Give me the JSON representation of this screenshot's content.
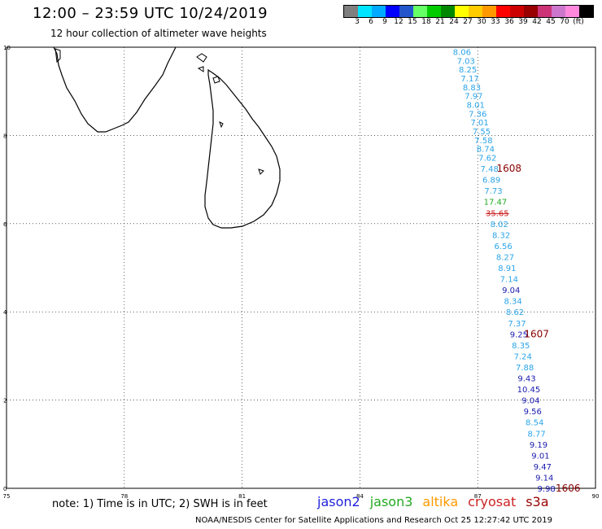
{
  "title": "12:00 – 23:59 UTC 10/24/2019",
  "subtitle": "12 hour collection of altimeter wave heights",
  "scale": {
    "colors": [
      "#7f7f7f",
      "#00e5ff",
      "#00aaff",
      "#0000ff",
      "#2255cc",
      "#66ff66",
      "#00cc00",
      "#008800",
      "#ffff00",
      "#ffcc00",
      "#ff9900",
      "#ff0000",
      "#cc0000",
      "#990000",
      "#cc3377",
      "#cc77cc",
      "#ff88dd",
      "#000000"
    ],
    "labels": [
      "3",
      "6",
      "9",
      "12",
      "15",
      "18",
      "21",
      "24",
      "27",
      "30",
      "33",
      "36",
      "39",
      "42",
      "45",
      "70",
      "(ft)"
    ]
  },
  "axes": {
    "lon_ticks": [
      "75",
      "78",
      "81",
      "84",
      "87",
      "90"
    ],
    "lat_ticks": [
      "0",
      "2",
      "4",
      "6",
      "8",
      "10"
    ]
  },
  "chart_data": {
    "type": "scatter",
    "xlim": [
      75,
      90
    ],
    "ylim": [
      0,
      10
    ],
    "grid": true,
    "points": [
      {
        "lon": 86.6,
        "lat": 9.9,
        "v": "8.06",
        "c": "#2aa4e8"
      },
      {
        "lon": 86.7,
        "lat": 9.7,
        "v": "7.03",
        "c": "#2aa4e8"
      },
      {
        "lon": 86.75,
        "lat": 9.5,
        "v": "8.25",
        "c": "#2aa4e8"
      },
      {
        "lon": 86.8,
        "lat": 9.3,
        "v": "7.17",
        "c": "#2aa4e8"
      },
      {
        "lon": 86.85,
        "lat": 9.1,
        "v": "8.83",
        "c": "#2aa4e8"
      },
      {
        "lon": 86.9,
        "lat": 8.9,
        "v": "7.97",
        "c": "#2aa4e8"
      },
      {
        "lon": 86.95,
        "lat": 8.7,
        "v": "8.01",
        "c": "#2aa4e8"
      },
      {
        "lon": 87.0,
        "lat": 8.5,
        "v": "7.36",
        "c": "#2aa4e8"
      },
      {
        "lon": 87.05,
        "lat": 8.3,
        "v": "7.01",
        "c": "#2aa4e8"
      },
      {
        "lon": 87.1,
        "lat": 8.1,
        "v": "7.55",
        "c": "#2aa4e8"
      },
      {
        "lon": 87.15,
        "lat": 7.9,
        "v": "7.58",
        "c": "#2aa4e8"
      },
      {
        "lon": 87.2,
        "lat": 7.7,
        "v": "8.74",
        "c": "#2aa4e8"
      },
      {
        "lon": 87.25,
        "lat": 7.5,
        "v": "7.62",
        "c": "#2aa4e8"
      },
      {
        "lon": 87.3,
        "lat": 7.25,
        "v": "7.48",
        "c": "#2aa4e8"
      },
      {
        "lon": 87.35,
        "lat": 7.0,
        "v": "6.89",
        "c": "#2aa4e8"
      },
      {
        "lon": 87.4,
        "lat": 6.75,
        "v": "7.73",
        "c": "#2aa4e8"
      },
      {
        "lon": 87.45,
        "lat": 6.5,
        "v": "17.47",
        "c": "#22aa22"
      },
      {
        "lon": 87.5,
        "lat": 6.25,
        "v": "35.65",
        "c": "#cc2222",
        "strike": true
      },
      {
        "lon": 87.55,
        "lat": 6.0,
        "v": "8.02",
        "c": "#2aa4e8"
      },
      {
        "lon": 87.6,
        "lat": 5.75,
        "v": "8.32",
        "c": "#2aa4e8"
      },
      {
        "lon": 87.65,
        "lat": 5.5,
        "v": "6.56",
        "c": "#2aa4e8"
      },
      {
        "lon": 87.7,
        "lat": 5.25,
        "v": "8.27",
        "c": "#2aa4e8"
      },
      {
        "lon": 87.75,
        "lat": 5.0,
        "v": "8.91",
        "c": "#2aa4e8"
      },
      {
        "lon": 87.8,
        "lat": 4.75,
        "v": "7.14",
        "c": "#2aa4e8"
      },
      {
        "lon": 87.85,
        "lat": 4.5,
        "v": "9.04",
        "c": "#1a1ab0"
      },
      {
        "lon": 87.9,
        "lat": 4.25,
        "v": "8.34",
        "c": "#2aa4e8"
      },
      {
        "lon": 87.95,
        "lat": 4.0,
        "v": "8.62",
        "c": "#2aa4e8"
      },
      {
        "lon": 88.0,
        "lat": 3.75,
        "v": "7.37",
        "c": "#2aa4e8"
      },
      {
        "lon": 88.05,
        "lat": 3.5,
        "v": "9.25",
        "c": "#1a1ab0"
      },
      {
        "lon": 88.1,
        "lat": 3.25,
        "v": "8.35",
        "c": "#2aa4e8"
      },
      {
        "lon": 88.15,
        "lat": 3.0,
        "v": "7.24",
        "c": "#2aa4e8"
      },
      {
        "lon": 88.2,
        "lat": 2.75,
        "v": "7.88",
        "c": "#2aa4e8"
      },
      {
        "lon": 88.25,
        "lat": 2.5,
        "v": "9.43",
        "c": "#1a1ab0"
      },
      {
        "lon": 88.3,
        "lat": 2.25,
        "v": "10.45",
        "c": "#1a1ab0"
      },
      {
        "lon": 88.35,
        "lat": 2.0,
        "v": "9.04",
        "c": "#1a1ab0"
      },
      {
        "lon": 88.4,
        "lat": 1.75,
        "v": "9.56",
        "c": "#1a1ab0"
      },
      {
        "lon": 88.45,
        "lat": 1.5,
        "v": "8.54",
        "c": "#2aa4e8"
      },
      {
        "lon": 88.5,
        "lat": 1.25,
        "v": "8.77",
        "c": "#2aa4e8"
      },
      {
        "lon": 88.55,
        "lat": 1.0,
        "v": "9.19",
        "c": "#1a1ab0"
      },
      {
        "lon": 88.6,
        "lat": 0.75,
        "v": "9.01",
        "c": "#1a1ab0"
      },
      {
        "lon": 88.65,
        "lat": 0.5,
        "v": "9.47",
        "c": "#1a1ab0"
      },
      {
        "lon": 88.7,
        "lat": 0.25,
        "v": "9.14",
        "c": "#1a1ab0"
      },
      {
        "lon": 88.75,
        "lat": 0.0,
        "v": "9.98",
        "c": "#1a1ab0"
      }
    ],
    "time_labels": [
      {
        "lon": 87.8,
        "lat": 7.25,
        "t": "1608"
      },
      {
        "lon": 88.5,
        "lat": 3.5,
        "t": "1607"
      },
      {
        "lon": 89.3,
        "lat": 0.0,
        "t": "1606"
      }
    ]
  },
  "note": "note: 1) Time is in UTC; 2) SWH is in feet",
  "satellites": [
    {
      "name": "jason2",
      "color": "#2222dd"
    },
    {
      "name": "jason3",
      "color": "#22aa22"
    },
    {
      "name": "altika",
      "color": "#ff9900"
    },
    {
      "name": "cryosat",
      "color": "#cc2222"
    },
    {
      "name": "s3a",
      "color": "#990000"
    }
  ],
  "footer": "NOAA/NESDIS Center for Satellite Applications and Research   Oct 25 12:27:42 UTC 2019"
}
